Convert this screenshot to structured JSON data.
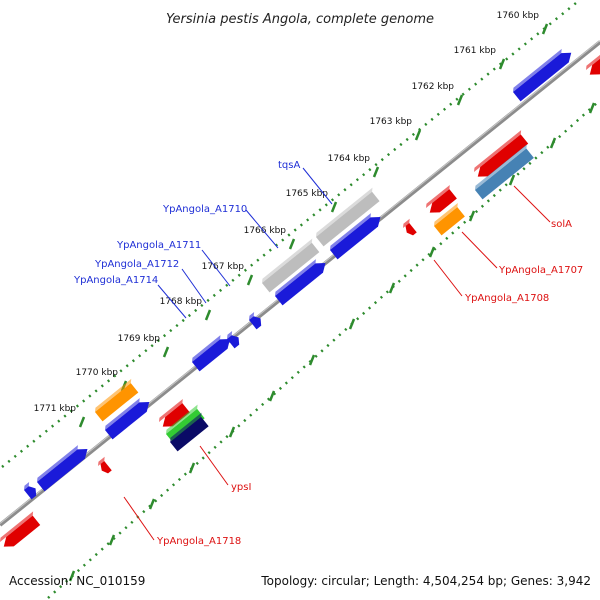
{
  "title": "Yersinia pestis Angola, complete genome",
  "footer": {
    "accession": "Accession: NC_010159",
    "summary": "Topology: circular; Length: 4,504,254 bp; Genes: 3,942"
  },
  "colors": {
    "backbone": "#8c8c8c",
    "ticks": "#2e8b2e",
    "forward_label": "#1f2fd6",
    "reverse_label": "#dd1111",
    "blue": "#1a1ad9",
    "red": "#e00000",
    "orange": "#ff9400",
    "gray": "#bdbdbd",
    "steelblue": "#4682b4",
    "green": "#33cc33",
    "navy": "#0a0a66"
  },
  "ticks": [
    {
      "label": "1760 kbp"
    },
    {
      "label": "1761 kbp"
    },
    {
      "label": "1762 kbp"
    },
    {
      "label": "1763 kbp"
    },
    {
      "label": "1764 kbp"
    },
    {
      "label": "1765 kbp"
    },
    {
      "label": "1766 kbp"
    },
    {
      "label": "1767 kbp"
    },
    {
      "label": "1768 kbp"
    },
    {
      "label": "1769 kbp"
    },
    {
      "label": "1770 kbp"
    },
    {
      "label": "1771 kbp"
    }
  ],
  "gene_labels_forward": [
    {
      "label": "tqsA"
    },
    {
      "label": "YpAngola_A1710"
    },
    {
      "label": "YpAngola_A1711"
    },
    {
      "label": "YpAngola_A1712"
    },
    {
      "label": "YpAngola_A1714"
    }
  ],
  "gene_labels_reverse": [
    {
      "label": "solA"
    },
    {
      "label": "YpAngola_A1707"
    },
    {
      "label": "YpAngola_A1708"
    },
    {
      "label": "ypsI"
    },
    {
      "label": "YpAngola_A1718"
    }
  ]
}
